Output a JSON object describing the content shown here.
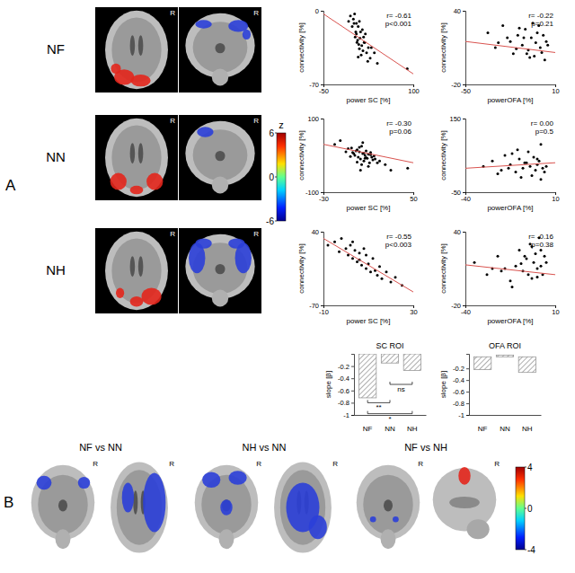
{
  "chart_data": [
    {
      "type": "scatter",
      "x_label": "power SC [%]",
      "y_label": "connectivity [%]",
      "annotations": [
        "r= -0.61",
        "p<0.001"
      ],
      "xlim": [
        -50,
        100
      ],
      "xticks": [
        -50,
        100
      ],
      "ylim": [
        -70,
        0
      ],
      "yticks": [
        0,
        -70
      ],
      "series": [
        {
          "type": "scatter",
          "marker": "circle",
          "color": "#000000",
          "x": [
            -5,
            0,
            2,
            5,
            8,
            10,
            12,
            15,
            3,
            -2,
            7,
            18,
            20,
            25,
            6,
            9,
            11,
            14,
            4,
            1,
            16,
            22,
            30,
            -8,
            13,
            17,
            28,
            35,
            10,
            5,
            8,
            19,
            24,
            40,
            90
          ],
          "values": [
            -5,
            -8,
            -3,
            -12,
            -15,
            -10,
            -20,
            -18,
            -25,
            -15,
            -28,
            -30,
            -22,
            -35,
            -30,
            -32,
            -26,
            -33,
            -20,
            -12,
            -38,
            -40,
            -35,
            -10,
            -42,
            -25,
            -45,
            -40,
            -36,
            -22,
            -44,
            -30,
            -48,
            -50,
            -55
          ]
        },
        {
          "type": "line",
          "line_style": "solid",
          "color": "#d9534f",
          "x": [
            -50,
            100
          ],
          "values": [
            -3,
            -60
          ]
        }
      ]
    },
    {
      "type": "scatter",
      "x_label": "powerOFA [%]",
      "y_label": "connectivity [%]",
      "annotations": [
        "r= -0.22",
        "p=0.21"
      ],
      "xlim": [
        -50,
        10
      ],
      "xticks": [
        -50,
        10
      ],
      "ylim": [
        -20,
        40
      ],
      "yticks": [
        40,
        -20
      ],
      "series": [
        {
          "type": "scatter",
          "marker": "circle",
          "color": "#000000",
          "x": [
            -35,
            -30,
            -25,
            -20,
            -18,
            -15,
            -12,
            -10,
            -8,
            -6,
            -5,
            -4,
            -3,
            -2,
            0,
            1,
            2,
            3,
            4,
            5,
            -22,
            -14,
            -9,
            -7,
            -1,
            -28,
            -16,
            -11
          ],
          "values": [
            22,
            10,
            28,
            15,
            5,
            20,
            12,
            25,
            8,
            18,
            30,
            3,
            14,
            22,
            10,
            6,
            20,
            0,
            15,
            12,
            18,
            26,
            5,
            2,
            28,
            14,
            9,
            18
          ]
        },
        {
          "type": "line",
          "line_style": "solid",
          "color": "#d9534f",
          "x": [
            -50,
            10
          ],
          "values": [
            15,
            6
          ]
        }
      ]
    },
    {
      "type": "scatter",
      "x_label": "power SC [%]",
      "y_label": "connectivity [%]",
      "annotations": [
        "r= -0.30",
        "p=0.06"
      ],
      "xlim": [
        -30,
        50
      ],
      "xticks": [
        -30,
        50
      ],
      "ylim": [
        -100,
        100
      ],
      "yticks": [
        100,
        -100
      ],
      "series": [
        {
          "type": "scatter",
          "marker": "circle",
          "color": "#000000",
          "x": [
            -20,
            -10,
            -5,
            -3,
            -2,
            0,
            1,
            2,
            3,
            4,
            5,
            6,
            7,
            8,
            9,
            10,
            11,
            12,
            13,
            14,
            15,
            -8,
            -6,
            -4,
            -1,
            0,
            2,
            4,
            6,
            8,
            10,
            12,
            16,
            18,
            20,
            25,
            30,
            45,
            -15,
            3,
            5,
            7
          ],
          "values": [
            30,
            10,
            20,
            5,
            0,
            15,
            -5,
            10,
            -10,
            25,
            5,
            -15,
            0,
            12,
            -8,
            3,
            -20,
            8,
            -5,
            -12,
            -2,
            18,
            -3,
            8,
            12,
            -18,
            22,
            -25,
            6,
            -6,
            -30,
            2,
            -10,
            -20,
            -15,
            -25,
            -40,
            -35,
            40,
            -40,
            35,
            -8
          ]
        },
        {
          "type": "line",
          "line_style": "solid",
          "color": "#d9534f",
          "x": [
            -30,
            50
          ],
          "values": [
            30,
            -20
          ]
        }
      ]
    },
    {
      "type": "scatter",
      "x_label": "powerOFA [%]",
      "y_label": "connectivity [%]",
      "annotations": [
        "r= 0.00",
        "p=0.5"
      ],
      "xlim": [
        -40,
        10
      ],
      "xticks": [
        -40,
        10
      ],
      "ylim": [
        -50,
        150
      ],
      "yticks": [
        150,
        -50
      ],
      "series": [
        {
          "type": "scatter",
          "marker": "circle",
          "color": "#000000",
          "x": [
            -30,
            -25,
            -20,
            -18,
            -15,
            -12,
            -10,
            -8,
            -6,
            -5,
            -4,
            -3,
            -2,
            -1,
            0,
            1,
            2,
            3,
            4,
            5,
            -22,
            -14,
            -9,
            -7,
            -16,
            -11,
            0,
            2
          ],
          "values": [
            20,
            35,
            10,
            50,
            25,
            5,
            40,
            15,
            30,
            60,
            20,
            -5,
            45,
            10,
            25,
            35,
            80,
            15,
            5,
            20,
            0,
            55,
            -10,
            30,
            15,
            65,
            40,
            -15
          ]
        },
        {
          "type": "line",
          "line_style": "solid",
          "color": "#d9534f",
          "x": [
            -40,
            10
          ],
          "values": [
            15,
            30
          ]
        }
      ]
    },
    {
      "type": "scatter",
      "x_label": "power SC [%]",
      "y_label": "connectivity [%]",
      "annotations": [
        "r= -0.55",
        "p<0.003"
      ],
      "xlim": [
        -10,
        30
      ],
      "xticks": [
        -10,
        30
      ],
      "ylim": [
        -70,
        40
      ],
      "yticks": [
        40,
        -70
      ],
      "series": [
        {
          "type": "scatter",
          "marker": "circle",
          "color": "#000000",
          "x": [
            -8,
            -5,
            -3,
            -2,
            0,
            1,
            2,
            3,
            4,
            5,
            6,
            7,
            8,
            9,
            10,
            11,
            12,
            14,
            15,
            16,
            18,
            20,
            22,
            25,
            3,
            6,
            9,
            13
          ],
          "values": [
            20,
            25,
            10,
            30,
            15,
            5,
            20,
            0,
            12,
            -5,
            8,
            -10,
            15,
            -15,
            -8,
            -20,
            0,
            -25,
            -12,
            -30,
            -20,
            -35,
            -28,
            -40,
            25,
            -2,
            5,
            -18
          ]
        },
        {
          "type": "line",
          "line_style": "solid",
          "color": "#d9534f",
          "x": [
            -10,
            30
          ],
          "values": [
            30,
            -50
          ]
        }
      ]
    },
    {
      "type": "scatter",
      "x_label": "powerOFA [%]",
      "y_label": "connectivity [%]",
      "annotations": [
        "r= -0.16",
        "p=0.38"
      ],
      "xlim": [
        -40,
        10
      ],
      "xticks": [
        -40,
        10
      ],
      "ylim": [
        -20,
        40
      ],
      "yticks": [
        40,
        -20
      ],
      "series": [
        {
          "type": "scatter",
          "marker": "circle",
          "color": "#000000",
          "x": [
            -35,
            -28,
            -22,
            -18,
            -15,
            -12,
            -10,
            -8,
            -6,
            -5,
            -4,
            -3,
            -2,
            -1,
            0,
            1,
            2,
            3,
            4,
            5,
            -20,
            -14,
            -9,
            -7,
            -3,
            0,
            2,
            -25
          ],
          "values": [
            15,
            5,
            20,
            10,
            0,
            12,
            25,
            8,
            18,
            5,
            30,
            2,
            15,
            22,
            10,
            35,
            12,
            5,
            20,
            15,
            8,
            -5,
            14,
            20,
            28,
            3,
            25,
            10
          ]
        },
        {
          "type": "line",
          "line_style": "solid",
          "color": "#d9534f",
          "x": [
            -40,
            10
          ],
          "values": [
            13,
            5
          ]
        }
      ]
    },
    {
      "type": "bar",
      "title": "SC ROI",
      "y_label": "slope [β]",
      "categories": [
        "NF",
        "NN",
        "NH"
      ],
      "values": [
        -0.72,
        -0.15,
        -0.27
      ],
      "color": "#8c8c8c",
      "ylim": [
        -1,
        0
      ],
      "yticks": [
        -1,
        -0.8,
        -0.6,
        -0.4,
        -0.2
      ],
      "annotations": [
        "**",
        "*",
        "ns"
      ]
    },
    {
      "type": "bar",
      "title": "OFA ROI",
      "y_label": "slope [β]",
      "categories": [
        "NF",
        "NN",
        "NH"
      ],
      "values": [
        -0.22,
        0.03,
        -0.27
      ],
      "color": "#8c8c8c",
      "ylim": [
        -1,
        0.05
      ],
      "yticks": [
        -1,
        -0.8,
        -0.6,
        -0.4,
        -0.2
      ]
    }
  ],
  "figure": {
    "panels": [
      "A",
      "B"
    ],
    "rows": [
      "NF",
      "NN",
      "NH"
    ],
    "side_label": "R",
    "comparisons": [
      "NF vs NN",
      "NH vs NN",
      "NF vs NH"
    ],
    "colorbars": [
      {
        "title": "z",
        "range": [
          -6,
          6
        ],
        "ticks": [
          6,
          0,
          -6
        ]
      },
      {
        "range": [
          -4,
          4
        ],
        "ticks": [
          4,
          0,
          -4
        ]
      }
    ]
  }
}
